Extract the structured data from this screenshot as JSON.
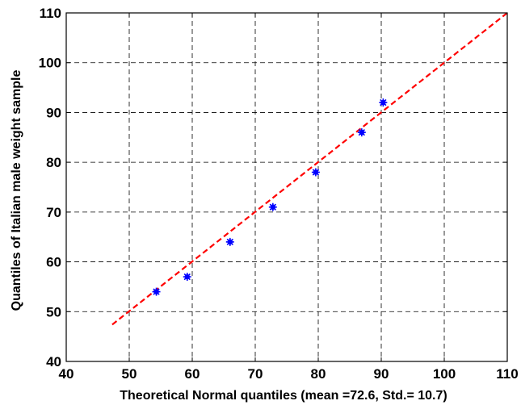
{
  "chart_data": {
    "type": "scatter",
    "title": "",
    "xlabel": "Theoretical Normal quantiles (mean =72.6, Std.= 10.7)",
    "ylabel": "Quantiles of Italian male weight sample",
    "xlim": [
      40,
      110
    ],
    "ylim": [
      40,
      110
    ],
    "xticks": [
      40,
      50,
      60,
      70,
      80,
      90,
      100,
      110
    ],
    "yticks": [
      40,
      50,
      60,
      70,
      80,
      90,
      100,
      110
    ],
    "grid": true,
    "legend": "none",
    "series": [
      {
        "kind": "points",
        "color": "#0000ff",
        "marker": "asterisk",
        "x": [
          54.3,
          59.2,
          66.0,
          72.8,
          79.6,
          86.9,
          90.3
        ],
        "y": [
          54,
          57,
          64,
          71,
          78,
          86,
          92
        ]
      },
      {
        "kind": "reference-line",
        "color": "#ff0000",
        "style": "dashed",
        "x": [
          47.3,
          110
        ],
        "y": [
          47.4,
          110
        ]
      }
    ]
  }
}
